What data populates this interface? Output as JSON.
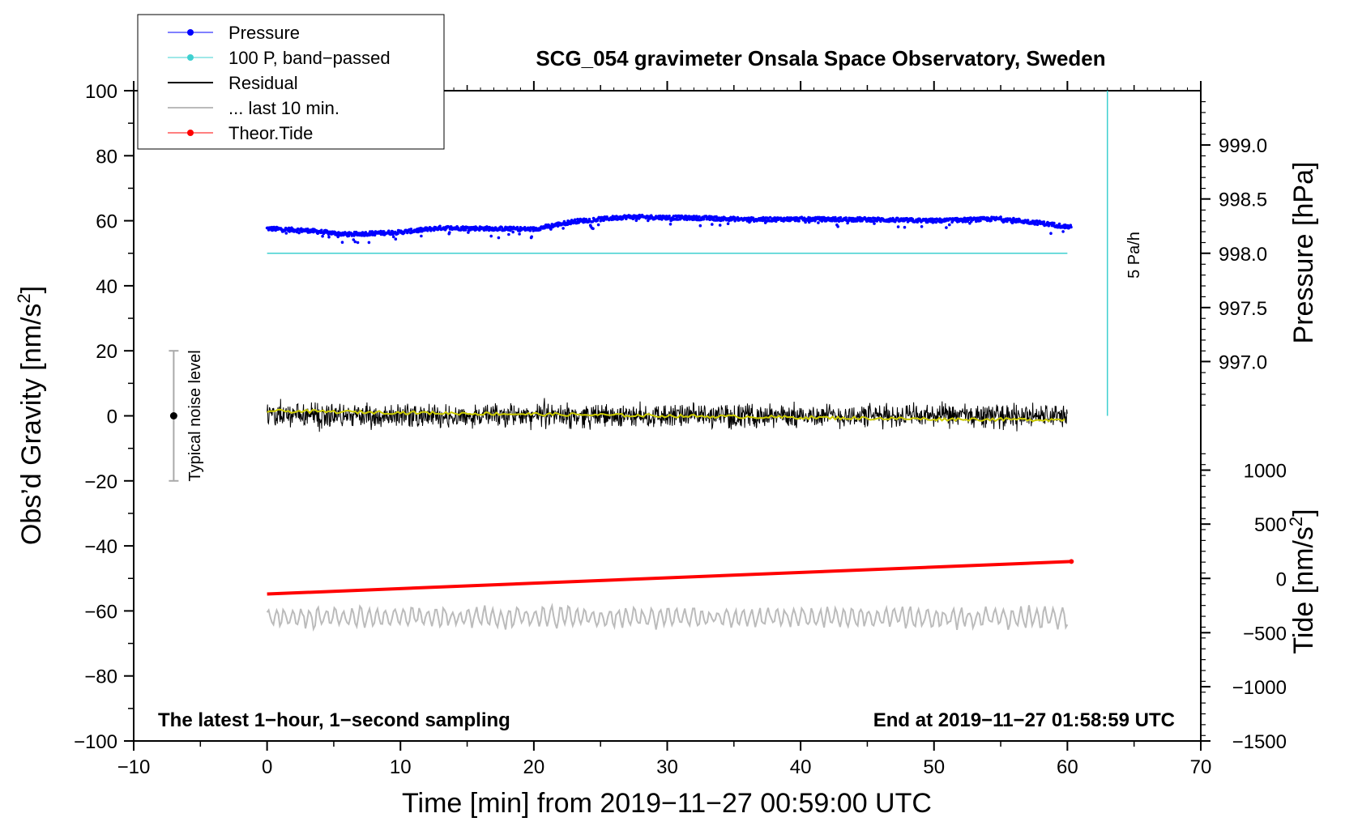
{
  "chart_data": {
    "type": "line",
    "title": "SCG_054 gravimeter Onsala Space Observatory, Sweden",
    "xlabel": "Time [min] from 2019−11−27 00:59:00 UTC",
    "ylabel_left_main": "Obs’d Gravity [nm/s",
    "ylabel_left_sup": "2",
    "ylabel_left_end": "]",
    "ylabel_right_pressure": "Pressure [hPa]",
    "ylabel_right_tide_main": "Tide [nm/s",
    "ylabel_right_tide_sup": "2",
    "ylabel_right_tide_end": "]",
    "xlim": [
      -10,
      70
    ],
    "ylim": [
      -100,
      100
    ],
    "xticks": [
      "−10",
      "0",
      "10",
      "20",
      "30",
      "40",
      "50",
      "60",
      "70"
    ],
    "xtick_values": [
      -10,
      0,
      10,
      20,
      30,
      40,
      50,
      60,
      70
    ],
    "yticks": [
      "100",
      "80",
      "60",
      "40",
      "20",
      "0",
      "−20",
      "−40",
      "−60",
      "−80",
      "−100"
    ],
    "ytick_values": [
      100,
      80,
      60,
      40,
      20,
      0,
      -20,
      -40,
      -60,
      -80,
      -100
    ],
    "pressure_axis": {
      "ticks": [
        "999.0",
        "998.5",
        "998.0",
        "997.5",
        "997.0"
      ],
      "tick_values": [
        999.0,
        998.5,
        998.0,
        997.5,
        997.0
      ],
      "gravity_equiv": [
        83.3,
        66.7,
        50,
        33.3,
        16.7
      ]
    },
    "tide_axis": {
      "ticks": [
        "1000",
        "500",
        "0",
        "−500",
        "−1000",
        "−1500"
      ],
      "tick_values": [
        1000,
        500,
        0,
        -500,
        -1000,
        -1500
      ],
      "gravity_equiv": [
        -16.7,
        -33.3,
        -50,
        -66.7,
        -83.3,
        -100
      ]
    },
    "legend": {
      "placement": "top-left",
      "entries": [
        {
          "label": "Pressure",
          "color": "#0000ff",
          "marker": "dot"
        },
        {
          "label": "100 P, band−passed",
          "color": "#3fd0d0",
          "marker": "dot"
        },
        {
          "label": "Residual",
          "color": "#000000",
          "marker": "line"
        },
        {
          "label": "... last 10 min.",
          "color": "#bbbbbb",
          "marker": "line"
        },
        {
          "label": "Theor.Tide",
          "color": "#ff0000",
          "marker": "dot"
        }
      ]
    },
    "series": [
      {
        "name": "Pressure",
        "color": "#0000ff",
        "points": [
          [
            0,
            57.6
          ],
          [
            3,
            57
          ],
          [
            6,
            55.8
          ],
          [
            10,
            56.5
          ],
          [
            13,
            57.8
          ],
          [
            17,
            57.6
          ],
          [
            20,
            57.4
          ],
          [
            23,
            59.8
          ],
          [
            27,
            61.2
          ],
          [
            30,
            61.0
          ],
          [
            33,
            60.8
          ],
          [
            36,
            60.4
          ],
          [
            40,
            60.5
          ],
          [
            45,
            60.4
          ],
          [
            50,
            60.0
          ],
          [
            55,
            60.6
          ],
          [
            58,
            59.3
          ],
          [
            60.3,
            58.0
          ]
        ]
      },
      {
        "name": "100 P, band−passed",
        "color": "#3fd0d0",
        "points": [
          [
            0,
            50
          ],
          [
            60,
            50
          ]
        ]
      },
      {
        "name": "Residual",
        "color": "#000000",
        "center": 0,
        "amplitude": 3
      },
      {
        "name": "Residual (smoothed)",
        "color": "#cccc00",
        "points": [
          [
            0,
            1.5
          ],
          [
            10,
            1.0
          ],
          [
            20,
            0.5
          ],
          [
            30,
            0
          ],
          [
            40,
            -0.5
          ],
          [
            50,
            -1.0
          ],
          [
            60,
            -1.2
          ]
        ]
      },
      {
        "name": "... last 10 min.",
        "color": "#bbbbbb",
        "center": -62,
        "amplitude": 3
      },
      {
        "name": "Theor.Tide",
        "color": "#ff0000",
        "points": [
          [
            0,
            -54.8
          ],
          [
            60.3,
            -44.8
          ]
        ]
      }
    ],
    "noise_bar": {
      "label": "Typical noise level",
      "x": -7,
      "y": 0,
      "ymin": -20,
      "ymax": 20
    },
    "scale_bar": {
      "label": "5 Pa/h",
      "x": 63,
      "ymin": 0,
      "ymax": 100
    },
    "annotations": {
      "bottom_left": "The latest 1−hour, 1−second sampling",
      "bottom_right": "End at 2019−11−27 01:58:59 UTC"
    }
  }
}
